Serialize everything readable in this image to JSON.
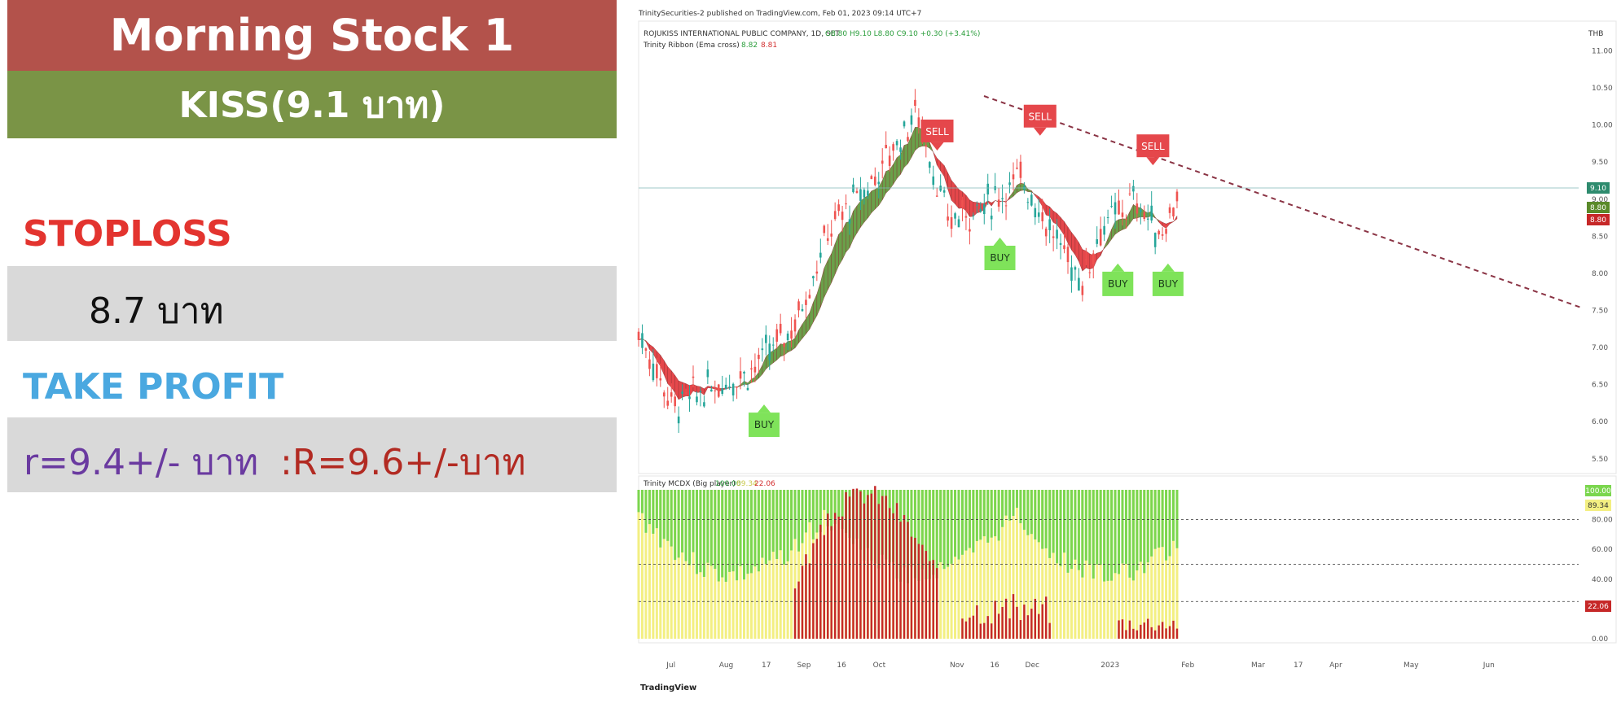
{
  "panel": {
    "title": "Morning Stock 1",
    "ticker": "KISS(9.1 บาท)",
    "stoploss_label": "STOPLOSS",
    "stoploss_value": "8.7 บาท",
    "takeprofit_label": "TAKE PROFIT",
    "takeprofit_r1": "r=9.4+/- บาท",
    "takeprofit_r2": ":R=9.6+/-บาท"
  },
  "colors": {
    "title_bg": "#b3524b",
    "ticker_bg": "#7a9446",
    "stoploss": "#e3342f",
    "takeprofit": "#4aa8e0",
    "box_bg": "#d9d9d9",
    "buy": "#7fe35a",
    "sell": "#e5474b",
    "ribbon_up": "#6aa04a",
    "ribbon_down": "#e5474b"
  },
  "chart_header": {
    "published": "TrinitySecurities-2 published on TradingView.com, Feb 01, 2023 09:14 UTC+7",
    "symbol_line": "ROJUKISS INTERNATIONAL PUBLIC COMPANY, 1D, SET",
    "ohlc": "O8.80  H9.10  L8.80  C9.10  +0.30 (+3.41%)",
    "indicator": "Trinity Ribbon (Ema cross)",
    "ind_v1": "8.82",
    "ind_v2": "8.81",
    "currency": "THB",
    "sub_indicator": "Trinity MCDX (Big player)",
    "sub_v1": "100.00",
    "sub_v2": "89.34",
    "sub_v3": "22.06",
    "logo": "TradingView"
  },
  "chart_data": {
    "type": "line",
    "series": [
      {
        "name": "KISS",
        "points": [
          [
            "Jul 1",
            7.2
          ],
          [
            "Jul 15",
            6.2
          ],
          [
            "Aug 1",
            6.5
          ],
          [
            "Aug 15",
            6.7
          ],
          [
            "Sep 1",
            7.3
          ],
          [
            "Sep 15",
            8.6
          ],
          [
            "Oct 1",
            9.2
          ],
          [
            "Oct 20",
            10.2
          ],
          [
            "Nov 1",
            8.7
          ],
          [
            "Nov 15",
            8.9
          ],
          [
            "Dec 1",
            9.3
          ],
          [
            "Dec 15",
            8.4
          ],
          [
            "Dec 25",
            7.9
          ],
          [
            "Jan 1",
            8.6
          ],
          [
            "Jan 15",
            9.0
          ],
          [
            "Jan 25",
            8.5
          ],
          [
            "Feb 1",
            9.1
          ]
        ]
      }
    ],
    "yaxis": [
      11.0,
      10.5,
      10.0,
      9.5,
      9.0,
      8.5,
      8.0,
      7.5,
      7.0,
      6.5,
      6.0,
      5.5
    ],
    "ylim": [
      5.3,
      11.4
    ],
    "price_tags": [
      "9.10",
      "8.80",
      "8.80"
    ],
    "xaxis": [
      "Jul",
      "Aug",
      "17",
      "Sep",
      "16",
      "Oct",
      "Nov",
      "16",
      "Dec",
      "2023",
      "Feb",
      "Mar",
      "17",
      "Apr",
      "May",
      "Jun"
    ],
    "sub_yaxis": [
      "80.00",
      "60.00",
      "40.00",
      "0.00"
    ],
    "sub_ylim": [
      0,
      100
    ],
    "signals": [
      {
        "label": "BUY",
        "date": "Aug 20",
        "price": 6.1
      },
      {
        "label": "SELL",
        "date": "Oct 28",
        "price": 9.7
      },
      {
        "label": "BUY",
        "date": "Nov 22",
        "price": 8.35
      },
      {
        "label": "SELL",
        "date": "Dec 8",
        "price": 9.9
      },
      {
        "label": "BUY",
        "date": "Jan 8",
        "price": 8.0
      },
      {
        "label": "SELL",
        "date": "Jan 22",
        "price": 9.5
      },
      {
        "label": "BUY",
        "date": "Jan 28",
        "price": 8.0
      }
    ]
  }
}
